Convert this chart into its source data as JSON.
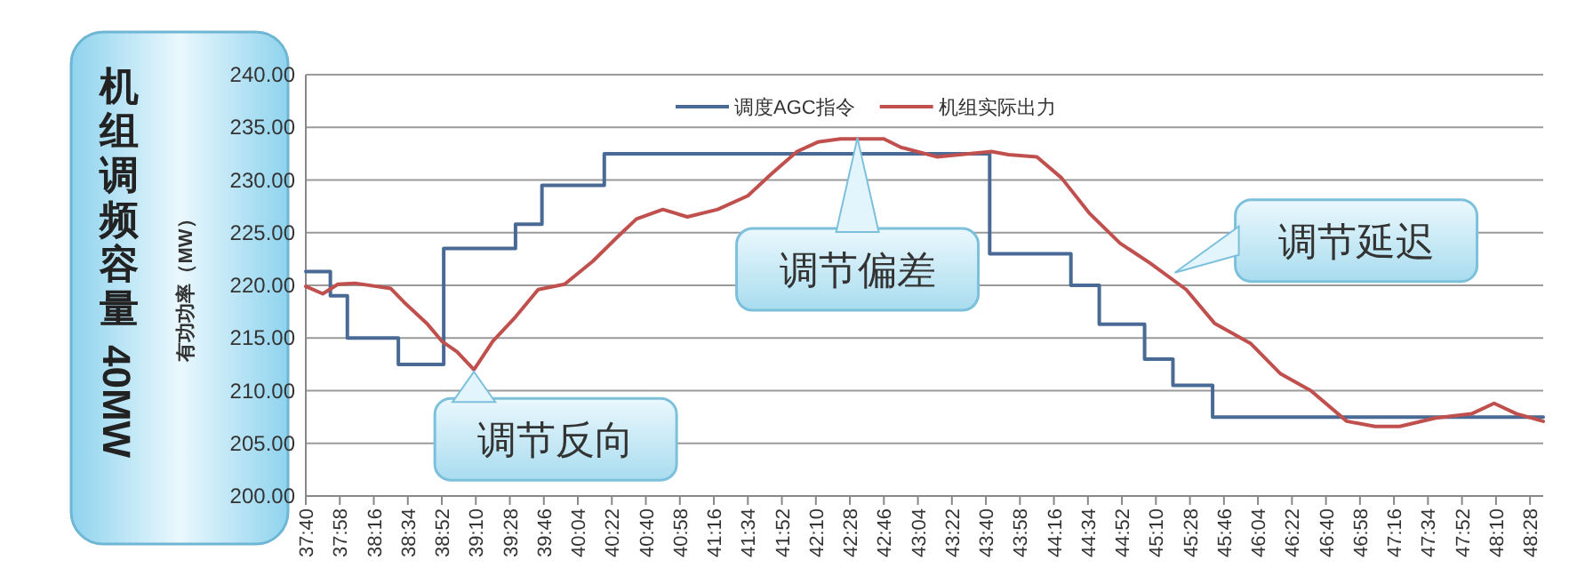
{
  "chart_data": {
    "type": "line",
    "title": "机组调频容量 40MW",
    "ylabel": "有功功率（MW）",
    "xlim": [
      2260,
      2915
    ],
    "ylim": [
      200,
      240
    ],
    "xticks": [
      {
        "value": 2260,
        "label": "37:40"
      },
      {
        "value": 2278,
        "label": "37:58"
      },
      {
        "value": 2296,
        "label": "38:16"
      },
      {
        "value": 2314,
        "label": "38:34"
      },
      {
        "value": 2332,
        "label": "38:52"
      },
      {
        "value": 2350,
        "label": "39:10"
      },
      {
        "value": 2368,
        "label": "39:28"
      },
      {
        "value": 2386,
        "label": "39:46"
      },
      {
        "value": 2404,
        "label": "40:04"
      },
      {
        "value": 2422,
        "label": "40:22"
      },
      {
        "value": 2440,
        "label": "40:40"
      },
      {
        "value": 2458,
        "label": "40:58"
      },
      {
        "value": 2476,
        "label": "41:16"
      },
      {
        "value": 2494,
        "label": "41:34"
      },
      {
        "value": 2512,
        "label": "41:52"
      },
      {
        "value": 2530,
        "label": "42:10"
      },
      {
        "value": 2548,
        "label": "42:28"
      },
      {
        "value": 2566,
        "label": "42:46"
      },
      {
        "value": 2584,
        "label": "43:04"
      },
      {
        "value": 2602,
        "label": "43:22"
      },
      {
        "value": 2620,
        "label": "43:40"
      },
      {
        "value": 2638,
        "label": "43:58"
      },
      {
        "value": 2656,
        "label": "44:16"
      },
      {
        "value": 2674,
        "label": "44:34"
      },
      {
        "value": 2692,
        "label": "44:52"
      },
      {
        "value": 2710,
        "label": "45:10"
      },
      {
        "value": 2728,
        "label": "45:28"
      },
      {
        "value": 2746,
        "label": "45:46"
      },
      {
        "value": 2764,
        "label": "46:04"
      },
      {
        "value": 2782,
        "label": "46:22"
      },
      {
        "value": 2800,
        "label": "46:40"
      },
      {
        "value": 2818,
        "label": "46:58"
      },
      {
        "value": 2836,
        "label": "47:16"
      },
      {
        "value": 2854,
        "label": "47:34"
      },
      {
        "value": 2872,
        "label": "47:52"
      },
      {
        "value": 2890,
        "label": "48:10"
      },
      {
        "value": 2908,
        "label": "48:28"
      }
    ],
    "yticks": [
      {
        "value": 200,
        "label": "200.00"
      },
      {
        "value": 205,
        "label": "205.00"
      },
      {
        "value": 210,
        "label": "210.00"
      },
      {
        "value": 215,
        "label": "215.00"
      },
      {
        "value": 220,
        "label": "220.00"
      },
      {
        "value": 225,
        "label": "225.00"
      },
      {
        "value": 230,
        "label": "230.00"
      },
      {
        "value": 235,
        "label": "235.00"
      },
      {
        "value": 240,
        "label": "240.00"
      }
    ],
    "grid": "y",
    "legend": "top",
    "marker": "none",
    "series": [
      {
        "name": "调度AGC指令",
        "type": "step",
        "color": "#4a6a96",
        "x": [
          2260,
          2273,
          2282,
          2309,
          2333,
          2371,
          2385,
          2418,
          2622,
          2665,
          2680,
          2704,
          2719,
          2740,
          2915
        ],
        "values": [
          221.3,
          219,
          215,
          212.5,
          223.5,
          225.8,
          229.5,
          232.5,
          223,
          220,
          216.3,
          213,
          210.5,
          207.5,
          207.5
        ]
      },
      {
        "name": "机组实际出力",
        "type": "line",
        "color": "#c0504d",
        "x": [
          2260,
          2269,
          2277,
          2286,
          2305,
          2312,
          2324,
          2332,
          2340,
          2349,
          2352,
          2359,
          2371,
          2383,
          2397,
          2412,
          2425,
          2435,
          2449,
          2462,
          2478,
          2494,
          2506,
          2520,
          2531,
          2543,
          2566,
          2575,
          2594,
          2623,
          2632,
          2647,
          2660,
          2675,
          2691,
          2707,
          2726,
          2741,
          2760,
          2776,
          2792,
          2811,
          2826,
          2839,
          2858,
          2877,
          2889,
          2901,
          2915
        ],
        "values": [
          219.9,
          219.2,
          220.1,
          220.2,
          219.7,
          218.4,
          216.4,
          214.7,
          213.7,
          212,
          212.8,
          214.7,
          217,
          219.6,
          220.1,
          222.3,
          224.6,
          226.3,
          227.2,
          226.5,
          227.2,
          228.5,
          230.5,
          232.7,
          233.6,
          233.9,
          233.9,
          233.1,
          232.2,
          232.7,
          232.4,
          232.2,
          230.2,
          226.8,
          224,
          222.1,
          219.6,
          216.4,
          214.5,
          211.6,
          210,
          207.1,
          206.6,
          206.6,
          207.4,
          207.8,
          208.8,
          207.8,
          207.1
        ]
      }
    ],
    "annotations": [
      {
        "text": "调节反向",
        "x": 2349,
        "y": 211.8
      },
      {
        "text": "调节偏差",
        "x": 2552,
        "y": 234
      },
      {
        "text": "调节延迟",
        "x": 2720,
        "y": 221.2
      }
    ]
  }
}
